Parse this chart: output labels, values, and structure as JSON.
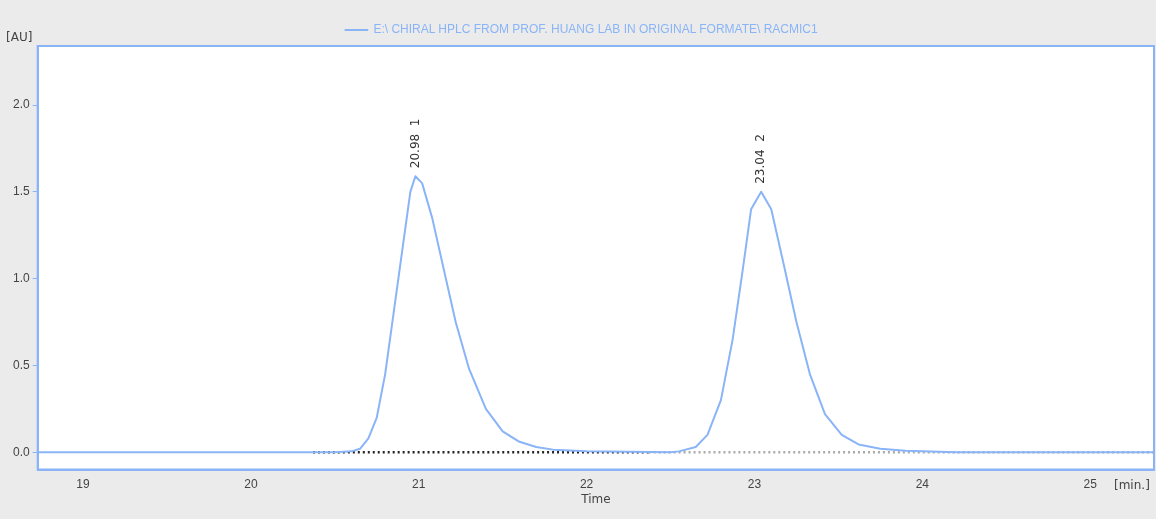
{
  "chart_data": {
    "type": "line",
    "ylabel": "[AU]",
    "xlabel": "Time",
    "xlim": [
      18.73,
      25.38
    ],
    "ylim": [
      -0.1,
      2.34
    ],
    "xticks": [
      19,
      20,
      21,
      22,
      23,
      24,
      25
    ],
    "yticks": [
      {
        "value": 0,
        "label": "0.0"
      },
      {
        "value": 0.5,
        "label": "0.5"
      },
      {
        "value": 1,
        "label": "1.0"
      },
      {
        "value": 1.5,
        "label": "1.5"
      },
      {
        "value": 2,
        "label": "2.0"
      }
    ],
    "series": [
      {
        "name": "E:\\ CHIRAL HPLC FROM PROF. HUANG LAB IN ORIGINAL FORMATE\\ RACMIC1",
        "color": "#8ab4f8",
        "line_style": "solid",
        "x": [
          18.73,
          20.5,
          20.6,
          20.65,
          20.7,
          20.75,
          20.8,
          20.85,
          20.9,
          20.95,
          20.98,
          21.02,
          21.08,
          21.15,
          21.22,
          21.3,
          21.4,
          21.5,
          21.6,
          21.7,
          21.8,
          22.0,
          22.5,
          22.55,
          22.65,
          22.72,
          22.8,
          22.87,
          22.93,
          22.98,
          23.04,
          23.1,
          23.17,
          23.25,
          23.33,
          23.42,
          23.52,
          23.62,
          23.75,
          23.9,
          24.2,
          25.38
        ],
        "values": [
          0,
          0,
          0.005,
          0.02,
          0.08,
          0.2,
          0.45,
          0.8,
          1.15,
          1.5,
          1.59,
          1.55,
          1.35,
          1.05,
          0.75,
          0.48,
          0.25,
          0.12,
          0.06,
          0.03,
          0.015,
          0.005,
          0,
          0.005,
          0.03,
          0.1,
          0.3,
          0.65,
          1.05,
          1.4,
          1.5,
          1.4,
          1.1,
          0.75,
          0.45,
          0.22,
          0.1,
          0.045,
          0.02,
          0.008,
          0,
          0
        ]
      },
      {
        "color": "#222222",
        "line_style": "dotted",
        "x": [
          20.37,
          22.37
        ],
        "values": [
          0,
          0
        ]
      },
      {
        "color": "#aaaaaa",
        "line_style": "dotted",
        "x": [
          22.37,
          25.38
        ],
        "values": [
          0,
          0
        ]
      }
    ],
    "annotations": [
      {
        "text": "20.98  1",
        "x": 20.98,
        "y": 1.59
      },
      {
        "text": "23.04  2",
        "x": 23.04,
        "y": 1.5
      },
      "[min.]"
    ],
    "legend": "top",
    "marker": "none",
    "grid": false
  }
}
